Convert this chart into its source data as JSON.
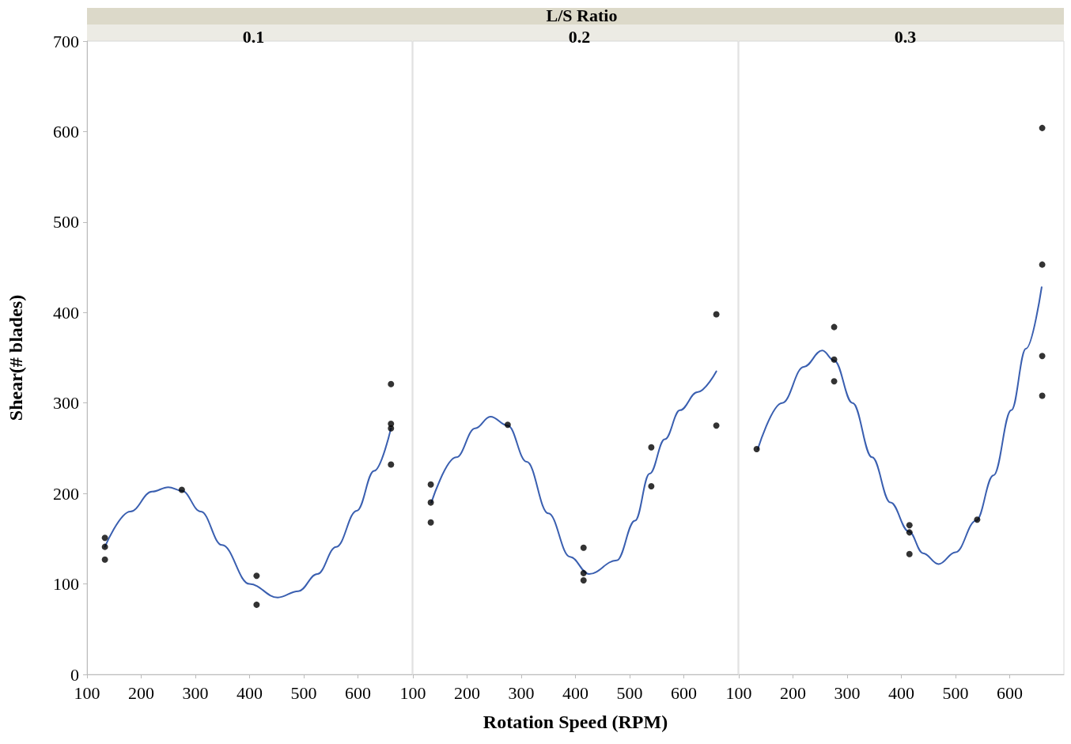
{
  "chart_data": [
    {
      "type": "scatter",
      "title": "0.1",
      "ylabel": "Shear(# blades)",
      "xlim": [
        100,
        700
      ],
      "xticks": [
        100,
        200,
        300,
        400,
        500,
        600
      ],
      "ylim": [
        0,
        700
      ],
      "yticks": [
        0,
        100,
        200,
        300,
        400,
        500,
        600,
        700
      ],
      "series": [
        {
          "color": "#000000",
          "marker": "circle",
          "x": [
            133,
            133,
            133,
            275,
            413,
            413,
            661,
            661,
            661,
            661
          ],
          "values": [
            151,
            141,
            127,
            204,
            109,
            77,
            321,
            277,
            272,
            232
          ]
        },
        {
          "type": "line",
          "color": "#3a5fb0",
          "marker": "none",
          "x": [
            133,
            180,
            220,
            250,
            275,
            310,
            349,
            400,
            452,
            490,
            525,
            560,
            598,
            630,
            661
          ],
          "values": [
            141,
            180,
            202,
            207,
            203,
            180,
            143,
            100,
            85,
            92,
            111,
            141,
            181,
            225,
            272
          ]
        }
      ]
    },
    {
      "type": "scatter",
      "title": "0.2",
      "xlabel": "Rotation Speed (RPM)",
      "annotations": [
        "L/S Ratio"
      ],
      "xlim": [
        100,
        700
      ],
      "xticks": [
        100,
        200,
        300,
        400,
        500,
        600
      ],
      "ylim": [
        0,
        700
      ],
      "yticks": [
        0,
        100,
        200,
        300,
        400,
        500,
        600,
        700
      ],
      "tick_labels": "x",
      "series": [
        {
          "color": "#000000",
          "marker": "circle",
          "x": [
            133,
            133,
            133,
            275,
            415,
            415,
            415,
            540,
            540,
            660,
            660
          ],
          "values": [
            210,
            190,
            168,
            276,
            140,
            112,
            104,
            251,
            208,
            398,
            275
          ]
        },
        {
          "type": "line",
          "color": "#3a5fb0",
          "marker": "none",
          "x": [
            134,
            180,
            215,
            243,
            275,
            310,
            350,
            390,
            425,
            476,
            510,
            537,
            565,
            593,
            625,
            660
          ],
          "values": [
            190,
            240,
            272,
            285,
            275,
            235,
            178,
            130,
            111,
            126,
            170,
            222,
            260,
            292,
            312,
            335
          ]
        }
      ]
    },
    {
      "type": "scatter",
      "title": "0.3",
      "xlim": [
        100,
        700
      ],
      "xticks": [
        100,
        200,
        300,
        400,
        500,
        600
      ],
      "ylim": [
        0,
        700
      ],
      "yticks": [
        0,
        100,
        200,
        300,
        400,
        500,
        600,
        700
      ],
      "tick_labels": "x",
      "series": [
        {
          "color": "#000000",
          "marker": "circle",
          "x": [
            133,
            276,
            276,
            276,
            415,
            415,
            415,
            540,
            660,
            660,
            660,
            660
          ],
          "values": [
            249,
            384,
            348,
            324,
            165,
            157,
            133,
            171,
            604,
            453,
            352,
            308
          ]
        },
        {
          "type": "line",
          "color": "#3a5fb0",
          "marker": "none",
          "x": [
            135,
            180,
            220,
            254,
            276,
            310,
            346,
            380,
            414,
            440,
            469,
            500,
            538,
            570,
            603,
            630,
            659
          ],
          "values": [
            249,
            300,
            340,
            358,
            347,
            300,
            240,
            190,
            158,
            134,
            122,
            135,
            170,
            220,
            292,
            360,
            428
          ]
        }
      ]
    }
  ]
}
